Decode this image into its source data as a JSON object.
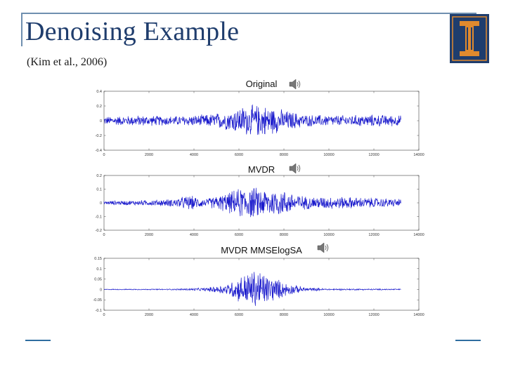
{
  "slide": {
    "title": "Denoising Example",
    "subtitle": "(Kim et al., 2006)",
    "logo_letter": "I",
    "colors": {
      "title": "#1f3d6d",
      "frame": "#6f8faf",
      "signal": "#1a1acc",
      "logo_bg": "#1f3d6d",
      "logo_fg": "#e08a2e"
    }
  },
  "chart_data": [
    {
      "type": "line",
      "title": "Original",
      "icon": "speaker-icon",
      "xlim": [
        0,
        14000
      ],
      "ylim": [
        -0.4,
        0.4
      ],
      "xticks": [
        0,
        2000,
        4000,
        6000,
        8000,
        10000,
        12000,
        14000
      ],
      "yticks": [
        -0.4,
        -0.2,
        0,
        0.2,
        0.4
      ],
      "ytick_labels": [
        "-0.4",
        "-0.2",
        "0",
        "0.2",
        "0.4"
      ],
      "signal_length": 13200,
      "envelope": [
        [
          0,
          0.06
        ],
        [
          1500,
          0.08
        ],
        [
          3000,
          0.07
        ],
        [
          4500,
          0.09
        ],
        [
          5500,
          0.14
        ],
        [
          6200,
          0.22
        ],
        [
          7000,
          0.24
        ],
        [
          8000,
          0.16
        ],
        [
          9000,
          0.09
        ],
        [
          10500,
          0.08
        ],
        [
          12000,
          0.09
        ],
        [
          13200,
          0.08
        ]
      ]
    },
    {
      "type": "line",
      "title": "MVDR",
      "icon": "speaker-icon",
      "xlim": [
        0,
        14000
      ],
      "ylim": [
        -0.2,
        0.2
      ],
      "xticks": [
        0,
        2000,
        4000,
        6000,
        8000,
        10000,
        12000,
        14000
      ],
      "yticks": [
        -0.2,
        -0.1,
        0,
        0.1,
        0.2
      ],
      "ytick_labels": [
        "-0.2",
        "-0.1",
        "0",
        "0.1",
        "0.2"
      ],
      "signal_length": 13200,
      "envelope": [
        [
          0,
          0.015
        ],
        [
          1500,
          0.02
        ],
        [
          3000,
          0.03
        ],
        [
          3800,
          0.06
        ],
        [
          4500,
          0.03
        ],
        [
          5500,
          0.08
        ],
        [
          6200,
          0.13
        ],
        [
          7000,
          0.12
        ],
        [
          8000,
          0.1
        ],
        [
          9000,
          0.05
        ],
        [
          10500,
          0.05
        ],
        [
          12000,
          0.04
        ],
        [
          13200,
          0.03
        ]
      ]
    },
    {
      "type": "line",
      "title": "MVDR MMSElogSA",
      "icon": "speaker-icon",
      "xlim": [
        0,
        14000
      ],
      "ylim": [
        -0.1,
        0.15
      ],
      "xticks": [
        0,
        2000,
        4000,
        6000,
        8000,
        10000,
        12000,
        14000
      ],
      "yticks": [
        -0.1,
        -0.05,
        0,
        0.05,
        0.1,
        0.15
      ],
      "ytick_labels": [
        "-0.1",
        "-0.05",
        "0",
        "0.05",
        "0.1",
        "0.15"
      ],
      "signal_length": 13200,
      "envelope": [
        [
          0,
          0.002
        ],
        [
          3000,
          0.003
        ],
        [
          4500,
          0.008
        ],
        [
          5500,
          0.03
        ],
        [
          6200,
          0.08
        ],
        [
          6800,
          0.11
        ],
        [
          7400,
          0.07
        ],
        [
          8200,
          0.03
        ],
        [
          9000,
          0.01
        ],
        [
          10000,
          0.004
        ],
        [
          13200,
          0.003
        ]
      ]
    }
  ]
}
